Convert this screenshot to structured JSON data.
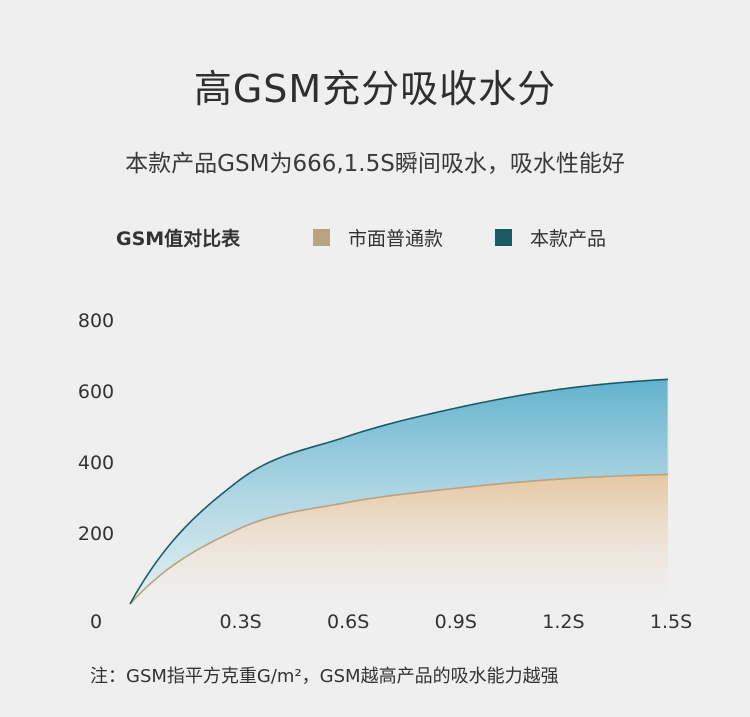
{
  "header": {
    "title": "高GSM充分吸收水分",
    "subtitle": "本款产品GSM为666,1.5S瞬间吸水，吸水性能好"
  },
  "legend": {
    "title": "GSM值对比表",
    "items": [
      {
        "label": "市面普通款",
        "color": "#b9a281"
      },
      {
        "label": "本款产品",
        "color": "#1b5b63"
      }
    ]
  },
  "chart_data": {
    "type": "area",
    "x_tick_labels": [
      "0",
      "0.3S",
      "0.6S",
      "0.9S",
      "1.2S",
      "1.5S"
    ],
    "x": [
      0,
      0.3,
      0.6,
      0.9,
      1.2,
      1.5
    ],
    "ylim": [
      0,
      800
    ],
    "yticks": [
      0,
      200,
      400,
      600,
      800
    ],
    "series": [
      {
        "name": "本款产品",
        "color": "#1b5b63",
        "fill": "#6fb6cf",
        "values": [
          0,
          345,
          470,
          550,
          605,
          633
        ]
      },
      {
        "name": "市面普通款",
        "color": "#b9a281",
        "fill": "#e9c9a3",
        "values": [
          0,
          210,
          285,
          325,
          352,
          365
        ]
      }
    ],
    "grid": false
  },
  "note": "注：GSM指平方克重G/m²，GSM越高产品的吸水能力越强"
}
